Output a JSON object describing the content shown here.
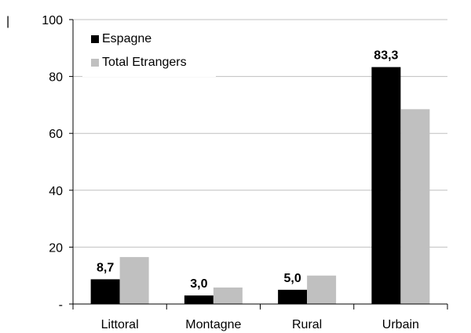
{
  "chart_data": {
    "type": "bar",
    "categories": [
      "Littoral",
      "Montagne",
      "Rural",
      "Urbain"
    ],
    "series": [
      {
        "name": "Espagne",
        "values": [
          8.7,
          3.0,
          5.0,
          83.3
        ],
        "color": "#000000"
      },
      {
        "name": "Total Etrangers",
        "values": [
          16.5,
          5.8,
          10.0,
          68.5
        ],
        "color": "#c0c0c0"
      }
    ],
    "data_labels": [
      "8,7",
      "3,0",
      "5,0",
      "83,3"
    ],
    "y_ticks": [
      {
        "value": 0,
        "label": "-"
      },
      {
        "value": 20,
        "label": "20"
      },
      {
        "value": 40,
        "label": "40"
      },
      {
        "value": 60,
        "label": "60"
      },
      {
        "value": 80,
        "label": "80"
      },
      {
        "value": 100,
        "label": "100"
      }
    ],
    "ylim": [
      0,
      100
    ],
    "grid": true,
    "legend_position": "top-left",
    "gridline_color": "#c0c0c0",
    "corner_mark": "|"
  }
}
